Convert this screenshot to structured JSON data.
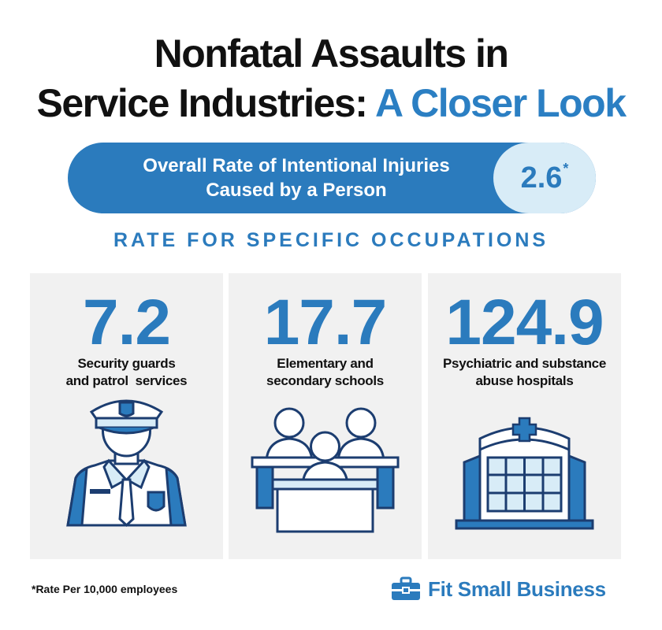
{
  "title": {
    "line1": "Nonfatal Assaults in",
    "line2_main": "Service Industries:",
    "line2_accent": "A Closer Look"
  },
  "overall": {
    "label_line1": "Overall Rate of Intentional Injuries",
    "label_line2": "Caused by a Person",
    "value": "2.6",
    "marker": "*"
  },
  "subheading": "RATE FOR SPECIFIC OCCUPATIONS",
  "occupations": [
    {
      "value": "7.2",
      "label_line1": "Security guards",
      "label_line2": "and patrol  services",
      "icon": "security-guard-icon"
    },
    {
      "value": "17.7",
      "label_line1": "Elementary and",
      "label_line2": "secondary schools",
      "icon": "classroom-icon"
    },
    {
      "value": "124.9",
      "label_line1": "Psychiatric and substance",
      "label_line2": "abuse hospitals",
      "icon": "hospital-building-icon"
    }
  ],
  "footnote": "*Rate Per 10,000 employees",
  "brand": {
    "name": "Fit Small Business",
    "icon": "briefcase-icon"
  },
  "colors": {
    "primary_blue": "#2b7bbd",
    "light_blue": "#d8ecf7",
    "card_bg": "#f1f1f1",
    "text": "#111111"
  }
}
